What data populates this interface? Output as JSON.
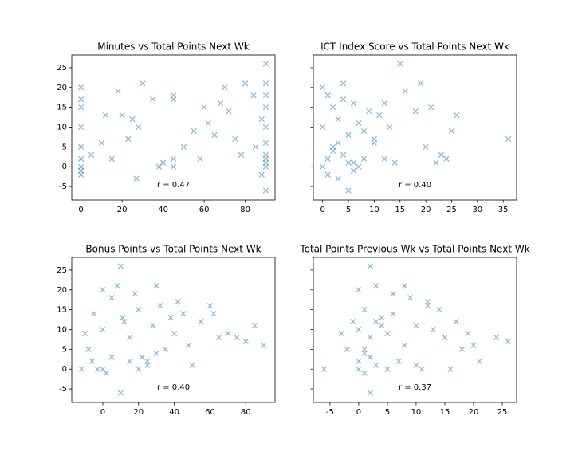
{
  "chart_data": [
    {
      "type": "scatter",
      "title": "Minutes vs Total Points Next Wk",
      "annotation": "r = 0.47",
      "color": "#1f77b4",
      "x": [
        0,
        0,
        0,
        0,
        0,
        0,
        0,
        0,
        0,
        90,
        90,
        90,
        90,
        90,
        90,
        90,
        90,
        90,
        90,
        45,
        45,
        45,
        45,
        5,
        10,
        15,
        20,
        25,
        30,
        35,
        12,
        18,
        28,
        60,
        65,
        70,
        75,
        80,
        85,
        62,
        72,
        78,
        84,
        88,
        68,
        55,
        50,
        40,
        38,
        27,
        88,
        90,
        23,
        58
      ],
      "y": [
        20,
        17,
        15,
        10,
        5,
        2,
        0,
        -1,
        -2,
        26,
        21,
        18,
        15,
        10,
        6,
        3,
        1,
        0,
        -6,
        18,
        17,
        2,
        0,
        3,
        6,
        2,
        13,
        12,
        21,
        17,
        13,
        19,
        10,
        15,
        8,
        20,
        7,
        21,
        5,
        11,
        14,
        3,
        18,
        12,
        16,
        9,
        5,
        1,
        0,
        -3,
        -2,
        2,
        7,
        2
      ],
      "xlim": [
        -4.5,
        94.5
      ],
      "ylim": [
        -8.4,
        28.2
      ],
      "xticks": [
        0,
        20,
        40,
        60,
        80
      ],
      "yticks": [
        -5,
        0,
        5,
        10,
        15,
        20,
        25
      ],
      "yticklabels": true
    },
    {
      "type": "scatter",
      "title": "ICT Index Score vs Total Points Next Wk",
      "annotation": "r = 0.40",
      "color": "#1f77b4",
      "x": [
        0,
        0,
        0,
        1,
        1,
        2,
        2,
        3,
        3,
        4,
        4,
        5,
        5,
        6,
        6,
        7,
        8,
        8,
        9,
        10,
        11,
        12,
        13,
        14,
        15,
        16,
        18,
        19,
        20,
        21,
        22,
        23,
        24,
        25,
        26,
        36,
        3,
        2,
        1,
        5,
        7,
        10,
        4,
        12,
        6
      ],
      "y": [
        20,
        10,
        0,
        18,
        -2,
        15,
        5,
        12,
        -3,
        21,
        3,
        -6,
        8,
        16,
        1,
        11,
        2,
        9,
        14,
        6,
        13,
        2,
        10,
        1,
        26,
        19,
        14,
        21,
        5,
        15,
        1,
        3,
        2,
        9,
        13,
        7,
        6,
        4,
        2,
        1,
        0,
        7,
        17,
        16,
        -1
      ],
      "xlim": [
        -1.8,
        37.6
      ],
      "ylim": [
        -8.4,
        28.2
      ],
      "xticks": [
        0,
        5,
        10,
        15,
        20,
        25,
        30,
        35
      ],
      "yticks": [
        -5,
        0,
        5,
        10,
        15,
        20,
        25
      ],
      "yticklabels": false
    },
    {
      "type": "scatter",
      "title": "Bonus Points vs Total Points Next Wk",
      "annotation": "r = 0.40",
      "color": "#1f77b4",
      "x": [
        -10,
        -8,
        -5,
        -3,
        0,
        0,
        0,
        2,
        5,
        8,
        10,
        12,
        15,
        18,
        20,
        22,
        25,
        28,
        30,
        32,
        35,
        38,
        40,
        42,
        45,
        48,
        50,
        55,
        60,
        62,
        65,
        70,
        75,
        80,
        85,
        90,
        10,
        15,
        20,
        5,
        25,
        -12,
        -6,
        30,
        11
      ],
      "y": [
        9,
        5,
        14,
        0,
        20,
        10,
        0,
        -1,
        18,
        21,
        26,
        12,
        8,
        19,
        15,
        3,
        2,
        11,
        21,
        16,
        5,
        13,
        9,
        17,
        14,
        6,
        1,
        12,
        16,
        14,
        8,
        9,
        8,
        7,
        11,
        6,
        -6,
        2,
        0,
        3,
        1,
        0,
        2,
        4,
        13
      ],
      "xlim": [
        -17.4,
        96.4
      ],
      "ylim": [
        -8.4,
        28.2
      ],
      "xticks": [
        0,
        20,
        40,
        60,
        80
      ],
      "yticks": [
        -5,
        0,
        5,
        10,
        15,
        20,
        25
      ],
      "yticklabels": true
    },
    {
      "type": "scatter",
      "title": "Total Points Previous Wk vs Total Points Next Wk",
      "annotation": "r = 0.37",
      "color": "#1f77b4",
      "x": [
        -6,
        -3,
        -2,
        -1,
        0,
        0,
        0,
        0,
        1,
        1,
        1,
        2,
        2,
        2,
        3,
        3,
        4,
        5,
        5,
        6,
        7,
        8,
        8,
        9,
        10,
        11,
        12,
        13,
        14,
        15,
        16,
        17,
        18,
        19,
        20,
        21,
        24,
        26,
        2,
        6,
        10,
        1,
        4,
        12,
        3
      ],
      "y": [
        0,
        9,
        5,
        12,
        20,
        10,
        2,
        0,
        15,
        -1,
        5,
        26,
        -6,
        8,
        21,
        1,
        13,
        9,
        0,
        14,
        2,
        21,
        6,
        18,
        11,
        0,
        17,
        10,
        15,
        8,
        0,
        12,
        5,
        9,
        6,
        2,
        8,
        7,
        3,
        19,
        1,
        4,
        11,
        16,
        12
      ],
      "xlim": [
        -7.9,
        27.5
      ],
      "ylim": [
        -8.4,
        28.2
      ],
      "xticks": [
        -5,
        0,
        5,
        10,
        15,
        20,
        25
      ],
      "yticks": [
        -5,
        0,
        5,
        10,
        15,
        20,
        25
      ],
      "yticklabels": false
    }
  ]
}
